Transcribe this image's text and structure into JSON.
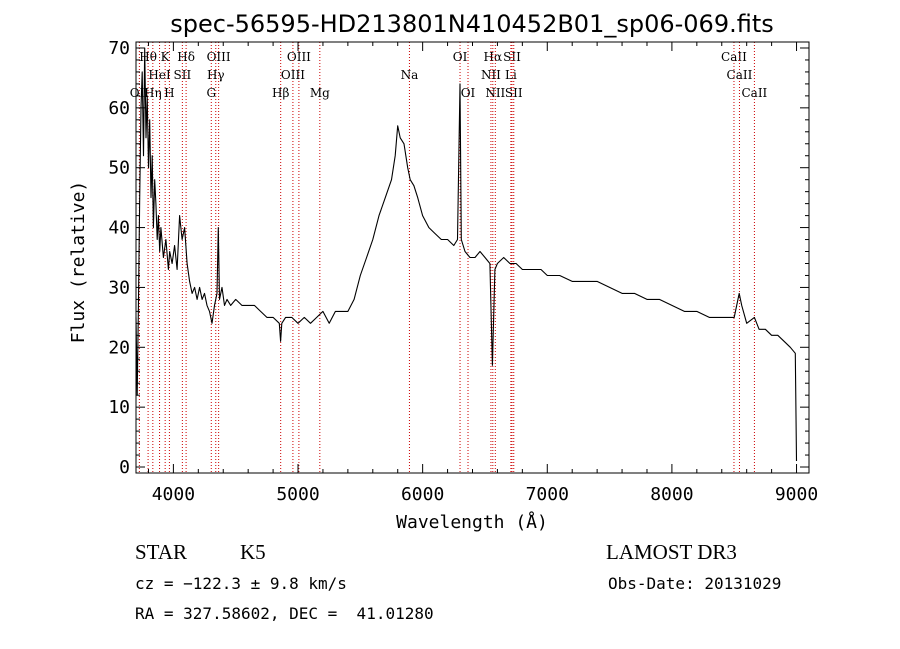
{
  "chart_data": {
    "type": "line",
    "title": "spec-56595-HD213801N410452B01_sp06-069.fits",
    "xlabel": "Wavelength (Å)",
    "ylabel": "Flux (relative)",
    "xlim": [
      3700,
      9100
    ],
    "ylim": [
      -1,
      71
    ],
    "xticks": [
      4000,
      5000,
      6000,
      7000,
      8000,
      9000
    ],
    "yticks": [
      0,
      10,
      20,
      30,
      40,
      50,
      60,
      70
    ],
    "grid": false,
    "line_color": "#000000",
    "marker_color": "#cc0000",
    "series": [
      {
        "points": [
          [
            3700,
            25
          ],
          [
            3710,
            12
          ],
          [
            3720,
            28
          ],
          [
            3730,
            45
          ],
          [
            3740,
            60
          ],
          [
            3750,
            66
          ],
          [
            3760,
            52
          ],
          [
            3770,
            70
          ],
          [
            3780,
            55
          ],
          [
            3790,
            62
          ],
          [
            3800,
            50
          ],
          [
            3810,
            58
          ],
          [
            3820,
            45
          ],
          [
            3830,
            52
          ],
          [
            3840,
            40
          ],
          [
            3850,
            48
          ],
          [
            3860,
            44
          ],
          [
            3870,
            38
          ],
          [
            3880,
            42
          ],
          [
            3890,
            36
          ],
          [
            3900,
            40
          ],
          [
            3920,
            35
          ],
          [
            3940,
            38
          ],
          [
            3960,
            33
          ],
          [
            3970,
            36
          ],
          [
            3990,
            34
          ],
          [
            4010,
            37
          ],
          [
            4030,
            33
          ],
          [
            4050,
            42
          ],
          [
            4070,
            38
          ],
          [
            4090,
            40
          ],
          [
            4110,
            34
          ],
          [
            4130,
            31
          ],
          [
            4150,
            29
          ],
          [
            4170,
            30
          ],
          [
            4190,
            28
          ],
          [
            4210,
            30
          ],
          [
            4230,
            28
          ],
          [
            4250,
            29
          ],
          [
            4270,
            27
          ],
          [
            4290,
            26
          ],
          [
            4310,
            24
          ],
          [
            4330,
            27
          ],
          [
            4350,
            29
          ],
          [
            4360,
            40
          ],
          [
            4370,
            28
          ],
          [
            4390,
            30
          ],
          [
            4410,
            27
          ],
          [
            4430,
            28
          ],
          [
            4460,
            27
          ],
          [
            4500,
            28
          ],
          [
            4550,
            27
          ],
          [
            4600,
            27
          ],
          [
            4650,
            27
          ],
          [
            4700,
            26
          ],
          [
            4750,
            25
          ],
          [
            4800,
            25
          ],
          [
            4850,
            24
          ],
          [
            4860,
            21
          ],
          [
            4870,
            24
          ],
          [
            4900,
            25
          ],
          [
            4950,
            25
          ],
          [
            5000,
            24
          ],
          [
            5050,
            25
          ],
          [
            5100,
            24
          ],
          [
            5150,
            25
          ],
          [
            5200,
            26
          ],
          [
            5250,
            24
          ],
          [
            5300,
            26
          ],
          [
            5350,
            26
          ],
          [
            5400,
            26
          ],
          [
            5450,
            28
          ],
          [
            5500,
            32
          ],
          [
            5550,
            35
          ],
          [
            5600,
            38
          ],
          [
            5650,
            42
          ],
          [
            5700,
            45
          ],
          [
            5750,
            48
          ],
          [
            5780,
            52
          ],
          [
            5800,
            57
          ],
          [
            5820,
            55
          ],
          [
            5850,
            54
          ],
          [
            5880,
            50
          ],
          [
            5900,
            48
          ],
          [
            5930,
            47
          ],
          [
            5960,
            45
          ],
          [
            6000,
            42
          ],
          [
            6050,
            40
          ],
          [
            6100,
            39
          ],
          [
            6150,
            38
          ],
          [
            6200,
            38
          ],
          [
            6250,
            37
          ],
          [
            6280,
            38
          ],
          [
            6300,
            64
          ],
          [
            6310,
            38
          ],
          [
            6340,
            36
          ],
          [
            6380,
            35
          ],
          [
            6420,
            35
          ],
          [
            6460,
            36
          ],
          [
            6500,
            35
          ],
          [
            6540,
            34
          ],
          [
            6560,
            17
          ],
          [
            6580,
            33
          ],
          [
            6600,
            34
          ],
          [
            6650,
            35
          ],
          [
            6700,
            34
          ],
          [
            6750,
            34
          ],
          [
            6800,
            33
          ],
          [
            6850,
            33
          ],
          [
            6900,
            33
          ],
          [
            6950,
            33
          ],
          [
            7000,
            32
          ],
          [
            7100,
            32
          ],
          [
            7200,
            31
          ],
          [
            7300,
            31
          ],
          [
            7400,
            31
          ],
          [
            7500,
            30
          ],
          [
            7600,
            29
          ],
          [
            7700,
            29
          ],
          [
            7800,
            28
          ],
          [
            7900,
            28
          ],
          [
            8000,
            27
          ],
          [
            8100,
            26
          ],
          [
            8200,
            26
          ],
          [
            8300,
            25
          ],
          [
            8400,
            25
          ],
          [
            8500,
            25
          ],
          [
            8540,
            29
          ],
          [
            8560,
            27
          ],
          [
            8600,
            24
          ],
          [
            8662,
            25
          ],
          [
            8700,
            23
          ],
          [
            8750,
            23
          ],
          [
            8800,
            22
          ],
          [
            8850,
            22
          ],
          [
            8900,
            21
          ],
          [
            8950,
            20
          ],
          [
            8990,
            19
          ],
          [
            9000,
            1
          ]
        ]
      }
    ],
    "line_markers": [
      {
        "label": "OII",
        "x": 3727,
        "row": 3
      },
      {
        "label": "Hθ",
        "x": 3797,
        "row": 1
      },
      {
        "label": "Hη",
        "x": 3835,
        "row": 3
      },
      {
        "label": "K",
        "x": 3934,
        "row": 1
      },
      {
        "label": "HeI",
        "x": 3889,
        "row": 2
      },
      {
        "label": "H",
        "x": 3968,
        "row": 3
      },
      {
        "label": "SII",
        "x": 4072,
        "row": 2
      },
      {
        "label": "Hδ",
        "x": 4102,
        "row": 1
      },
      {
        "label": "OIII",
        "x": 4363,
        "row": 1
      },
      {
        "label": "Hγ",
        "x": 4340,
        "row": 2
      },
      {
        "label": "G",
        "x": 4304,
        "row": 3
      },
      {
        "label": "Hβ",
        "x": 4861,
        "row": 3
      },
      {
        "label": "OIII",
        "x": 5007,
        "row": 1
      },
      {
        "label": "OIII",
        "x": 4959,
        "row": 2
      },
      {
        "label": "Mg",
        "x": 5175,
        "row": 3
      },
      {
        "label": "Na",
        "x": 5894,
        "row": 2
      },
      {
        "label": "OI",
        "x": 6300,
        "row": 1
      },
      {
        "label": "OI",
        "x": 6364,
        "row": 3
      },
      {
        "label": "Hα",
        "x": 6563,
        "row": 1
      },
      {
        "label": "NII",
        "x": 6548,
        "row": 2
      },
      {
        "label": "NII",
        "x": 6583,
        "row": 3
      },
      {
        "label": "SII",
        "x": 6717,
        "row": 1
      },
      {
        "label": "Li",
        "x": 6708,
        "row": 2
      },
      {
        "label": "SII",
        "x": 6731,
        "row": 3
      },
      {
        "label": "CaII",
        "x": 8498,
        "row": 1
      },
      {
        "label": "CaII",
        "x": 8542,
        "row": 2
      },
      {
        "label": "CaII",
        "x": 8662,
        "row": 3
      }
    ]
  },
  "info": {
    "class": "STAR",
    "subclass": "K5",
    "survey": "LAMOST DR3",
    "redshift": "cz = −122.3 ± 9.8 km/s",
    "obs_date": "Obs-Date: 20131029",
    "coords": "RA = 327.58602, DEC =  41.01280"
  }
}
